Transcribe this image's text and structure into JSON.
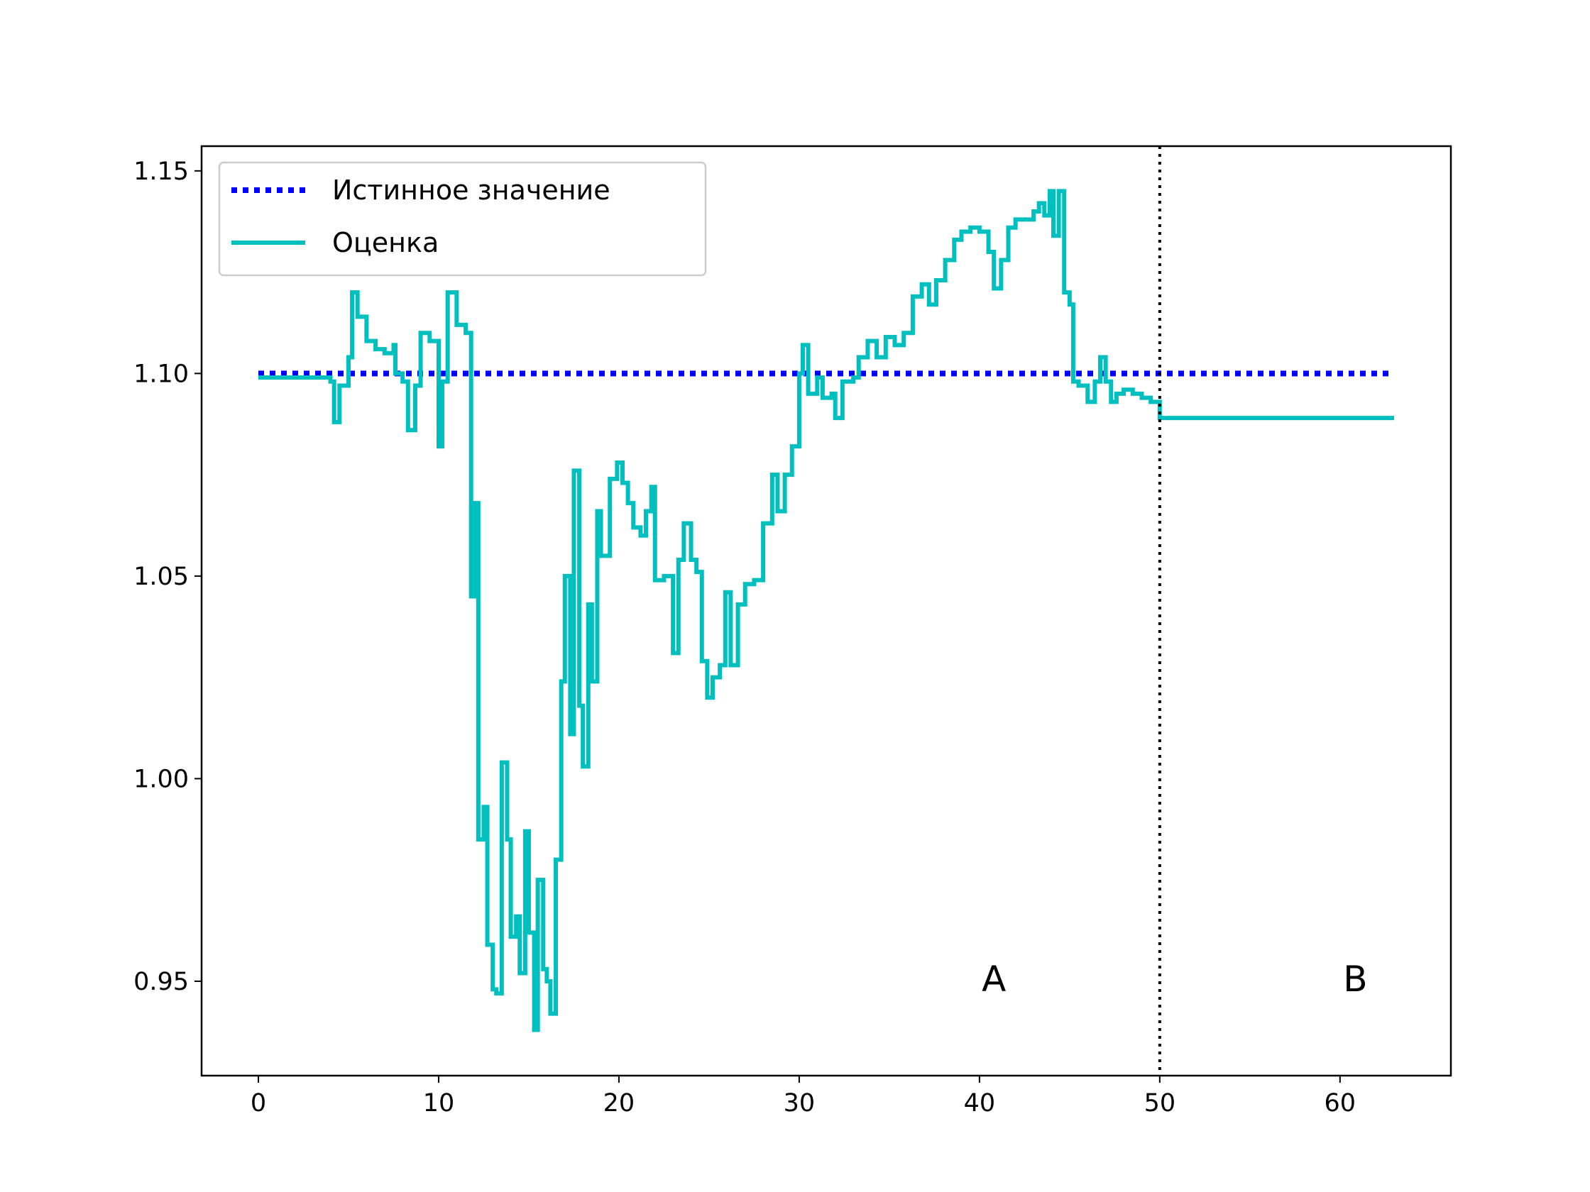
{
  "chart_data": {
    "type": "line",
    "step": "post",
    "xlim": [
      -3.15,
      66.15
    ],
    "ylim": [
      0.9267,
      1.1561
    ],
    "xticks": [
      0,
      10,
      20,
      30,
      40,
      50,
      60
    ],
    "yticks": [
      {
        "value": 0.95,
        "label": "0.95"
      },
      {
        "value": 1.0,
        "label": "1.00"
      },
      {
        "value": 1.05,
        "label": "1.05"
      },
      {
        "value": 1.1,
        "label": "1.10"
      },
      {
        "value": 1.15,
        "label": "1.15"
      }
    ],
    "legend": "upper left",
    "series": [
      {
        "name": "Истинное значение",
        "color": "#0000ff",
        "style": "dotted",
        "x": [
          0,
          63
        ],
        "values": [
          1.1,
          1.1
        ]
      },
      {
        "name": "Оценка",
        "color": "#00bfbf",
        "style": "solid",
        "x": [
          0,
          4,
          4.2,
          4.5,
          5,
          5.2,
          5.5,
          6,
          6.5,
          7,
          7.5,
          7.6,
          8,
          8.3,
          8.7,
          9,
          9.5,
          10,
          10.2,
          10.5,
          11,
          11.5,
          11.8,
          12,
          12.2,
          12.5,
          12.7,
          13,
          13.2,
          13.5,
          13.8,
          14,
          14.3,
          14.5,
          14.8,
          15,
          15.3,
          15.5,
          15.8,
          16,
          16.2,
          16.5,
          16.8,
          17,
          17.3,
          17.5,
          17.8,
          18,
          18.3,
          18.5,
          18.8,
          19,
          19.5,
          19.9,
          20.2,
          20.5,
          20.8,
          21.2,
          21.5,
          21.8,
          22,
          22.5,
          23,
          23.3,
          23.6,
          24,
          24.3,
          24.6,
          24.9,
          25.2,
          25.6,
          25.9,
          26.2,
          26.6,
          27,
          27.5,
          28,
          28.5,
          28.8,
          29.2,
          29.6,
          30,
          30.2,
          30.5,
          31,
          31.3,
          31.8,
          32,
          32.4,
          33,
          33.3,
          33.8,
          34.3,
          34.8,
          35.3,
          35.8,
          36.3,
          36.8,
          37.2,
          37.6,
          38.1,
          38.6,
          39,
          39.5,
          40,
          40.5,
          40.8,
          41.2,
          41.6,
          42,
          42.5,
          43,
          43.3,
          43.6,
          43.9,
          44.1,
          44.4,
          44.7,
          45,
          45.2,
          45.5,
          46,
          46.4,
          46.7,
          47,
          47.3,
          47.6,
          48,
          48.5,
          49,
          49.5,
          50,
          63
        ],
        "values": [
          1.099,
          1.098,
          1.088,
          1.097,
          1.104,
          1.12,
          1.114,
          1.108,
          1.106,
          1.105,
          1.107,
          1.1,
          1.098,
          1.086,
          1.097,
          1.11,
          1.108,
          1.082,
          1.098,
          1.12,
          1.112,
          1.11,
          1.045,
          1.068,
          0.985,
          0.993,
          0.959,
          0.948,
          0.947,
          1.004,
          0.985,
          0.961,
          0.966,
          0.952,
          0.987,
          0.962,
          0.938,
          0.975,
          0.953,
          0.95,
          0.942,
          0.98,
          1.024,
          1.05,
          1.011,
          1.076,
          1.018,
          1.003,
          1.043,
          1.024,
          1.066,
          1.055,
          1.074,
          1.078,
          1.073,
          1.068,
          1.062,
          1.06,
          1.066,
          1.072,
          1.049,
          1.05,
          1.031,
          1.054,
          1.063,
          1.054,
          1.051,
          1.029,
          1.02,
          1.025,
          1.028,
          1.046,
          1.028,
          1.043,
          1.048,
          1.049,
          1.063,
          1.075,
          1.066,
          1.075,
          1.082,
          1.1,
          1.107,
          1.095,
          1.099,
          1.094,
          1.095,
          1.089,
          1.098,
          1.099,
          1.104,
          1.108,
          1.104,
          1.109,
          1.107,
          1.11,
          1.119,
          1.122,
          1.117,
          1.123,
          1.128,
          1.133,
          1.135,
          1.136,
          1.135,
          1.13,
          1.121,
          1.128,
          1.136,
          1.138,
          1.138,
          1.14,
          1.142,
          1.139,
          1.145,
          1.134,
          1.145,
          1.12,
          1.117,
          1.098,
          1.097,
          1.093,
          1.098,
          1.104,
          1.098,
          1.093,
          1.095,
          1.096,
          1.095,
          1.094,
          1.093,
          1.089,
          1.089
        ]
      }
    ],
    "vlines": [
      {
        "x": 50,
        "color": "#000000",
        "style": "dotted"
      }
    ],
    "annotations": [
      {
        "text": "A",
        "x": 40.8,
        "y": 0.9505
      },
      {
        "text": "B",
        "x": 60.85,
        "y": 0.9505
      }
    ]
  }
}
